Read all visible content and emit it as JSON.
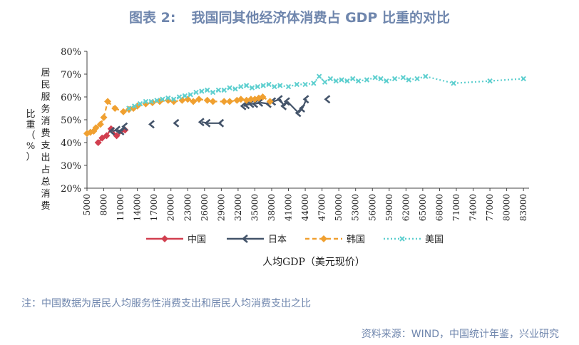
{
  "header": {
    "figure_no": "图表 2:",
    "title": "我国同其他经济体消费占 GDP 比重的对比"
  },
  "chart_data": {
    "type": "line",
    "ylabel_main": "居民服务消费支出占总消费",
    "ylabel_sub": "比重（%）",
    "xlabel": "人均GDP（美元现价）",
    "xlim": [
      5000,
      84000
    ],
    "ylim": [
      20,
      80
    ],
    "yticks": [
      {
        "v": 20,
        "label": "20%"
      },
      {
        "v": 30,
        "label": "30%"
      },
      {
        "v": 40,
        "label": "40%"
      },
      {
        "v": 50,
        "label": "50%"
      },
      {
        "v": 60,
        "label": "60%"
      },
      {
        "v": 70,
        "label": "70%"
      },
      {
        "v": 80,
        "label": "80%"
      }
    ],
    "xticks": [
      "5000",
      "8000",
      "11000",
      "14000",
      "17000",
      "20000",
      "23000",
      "26000",
      "29000",
      "32000",
      "35000",
      "38000",
      "41000",
      "44000",
      "47000",
      "50000",
      "53000",
      "56000",
      "59000",
      "62000",
      "65000",
      "68000",
      "71000",
      "74000",
      "77000",
      "80000",
      "83000"
    ],
    "series": [
      {
        "name": "中国",
        "color": "#d13f4f",
        "marker": "diamond",
        "line": "solid",
        "x": [
          7000,
          7700,
          8500,
          9300,
          10300,
          11800
        ],
        "y": [
          40.0,
          42.0,
          43.0,
          46.0,
          43.0,
          45.5
        ]
      },
      {
        "name": "日本",
        "color": "#44546a",
        "marker": "chevron",
        "line": "gaps",
        "x": [
          9500,
          10500,
          11200,
          11800,
          16600,
          21000,
          25500,
          26600,
          29000,
          33000,
          33600,
          34400,
          35100,
          36000,
          37500,
          38300,
          39500,
          40200,
          40800,
          42800,
          43500,
          44200,
          48000
        ],
        "y": [
          45.0,
          45.5,
          45.0,
          47.0,
          48.0,
          48.5,
          49.0,
          48.5,
          48.5,
          56.0,
          56.5,
          57.0,
          57.0,
          57.5,
          57.0,
          58.0,
          59.0,
          56.0,
          58.0,
          53.0,
          55.0,
          59.0,
          59.0
        ]
      },
      {
        "name": "韩国",
        "color": "#f0a030",
        "marker": "diamond",
        "line": "dashed",
        "x": [
          5000,
          5600,
          6200,
          6600,
          7400,
          8000,
          8700,
          10000,
          11500,
          12500,
          13300,
          14000,
          15500,
          16700,
          18000,
          19500,
          20500,
          22000,
          23000,
          24000,
          25000,
          26500,
          27500,
          29500,
          30500,
          31800,
          32500,
          33500,
          34300,
          35000,
          35700,
          36400,
          37700
        ],
        "y": [
          44.0,
          44.5,
          45.0,
          46.5,
          48.0,
          51.0,
          58.0,
          55.0,
          53.5,
          54.5,
          55.0,
          56.0,
          57.0,
          57.5,
          58.0,
          58.5,
          58.0,
          58.5,
          59.0,
          58.0,
          59.0,
          58.5,
          58.0,
          58.0,
          58.0,
          58.5,
          59.0,
          58.5,
          59.0,
          59.0,
          59.5,
          60.0,
          58.0
        ]
      },
      {
        "name": "美国",
        "color": "#5ecfcf",
        "marker": "cross",
        "line": "dotted",
        "x": [
          12500,
          13500,
          14500,
          15500,
          16500,
          17500,
          18500,
          19500,
          20500,
          21500,
          22500,
          23500,
          24500,
          25500,
          26500,
          27500,
          28500,
          29500,
          30500,
          31500,
          32500,
          33500,
          34500,
          35500,
          36500,
          37500,
          38500,
          39500,
          41000,
          42500,
          44000,
          45500,
          46500,
          47500,
          48500,
          49500,
          50500,
          51500,
          52500,
          53500,
          55000,
          56500,
          57500,
          58500,
          60000,
          61500,
          62500,
          64000,
          65500,
          70500,
          77000,
          83000
        ],
        "y": [
          55.0,
          56.0,
          57.0,
          58.0,
          58.0,
          58.5,
          59.0,
          59.5,
          59.0,
          60.0,
          60.5,
          61.0,
          62.0,
          62.5,
          63.0,
          62.0,
          63.0,
          63.0,
          64.0,
          63.5,
          64.5,
          65.0,
          64.0,
          64.5,
          65.0,
          65.5,
          64.5,
          65.0,
          64.5,
          65.5,
          65.5,
          66.0,
          69.0,
          66.5,
          68.0,
          67.0,
          67.5,
          67.0,
          68.0,
          67.0,
          67.5,
          68.5,
          68.0,
          67.0,
          68.0,
          68.5,
          67.5,
          68.0,
          69.0,
          66.0,
          67.0,
          68.0
        ]
      }
    ]
  },
  "footer": {
    "note": "注：中国数据为居民人均服务性消费支出和居民人均消费支出之比",
    "source": "资料来源：WIND，中国统计年鉴，兴业研究"
  }
}
